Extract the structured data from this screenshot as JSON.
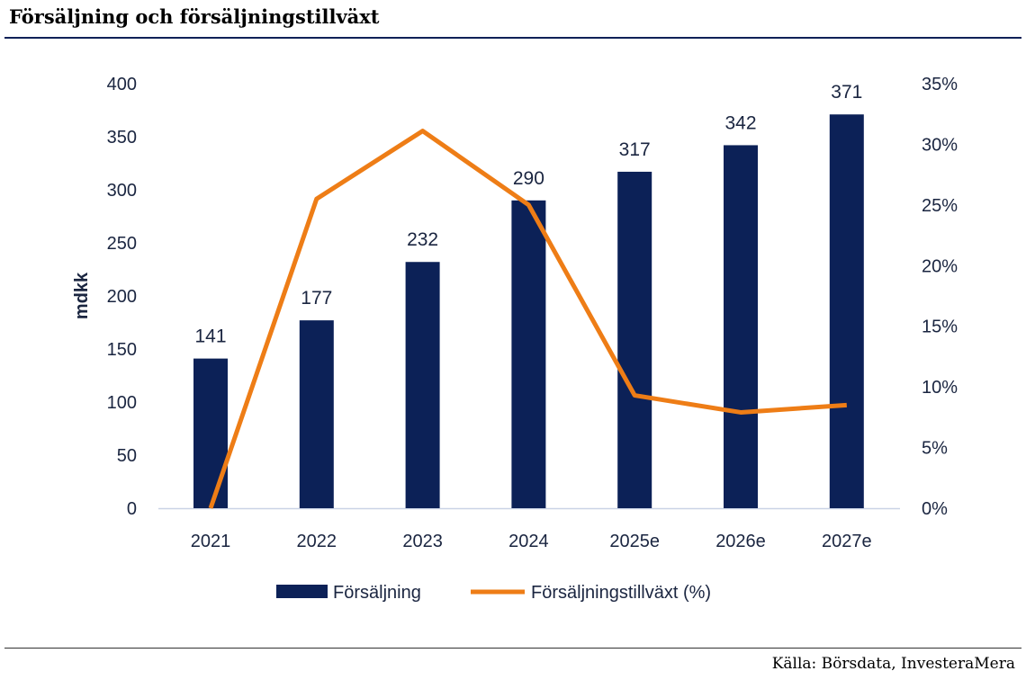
{
  "title": "Försäljning och försäljningstillväxt",
  "source": "Källa: Börsdata, InvesteraMera",
  "colors": {
    "bar": "#0c2157",
    "line": "#ee7d16",
    "axis": "#c9d3e6"
  },
  "chart_data": {
    "type": "bar",
    "categories": [
      "2021",
      "2022",
      "2023",
      "2024",
      "2025e",
      "2026e",
      "2027e"
    ],
    "series": [
      {
        "name": "Försäljning",
        "type": "bar",
        "axis": "left",
        "values": [
          141,
          177,
          232,
          290,
          317,
          342,
          371
        ]
      },
      {
        "name": "Försäljningstillväxt (%)",
        "type": "line",
        "axis": "right",
        "values": [
          0,
          25.5,
          31.1,
          25.0,
          9.3,
          7.9,
          8.5
        ]
      }
    ],
    "ylabel": "mdkk",
    "ylim": [
      0,
      400
    ],
    "yticks": [
      "0",
      "50",
      "100",
      "150",
      "200",
      "250",
      "300",
      "350",
      "400"
    ],
    "y2lim": [
      0,
      35
    ],
    "y2ticks": [
      "0%",
      "5%",
      "10%",
      "15%",
      "20%",
      "25%",
      "30%",
      "35%"
    ],
    "legend": "bottom",
    "grid": false
  }
}
